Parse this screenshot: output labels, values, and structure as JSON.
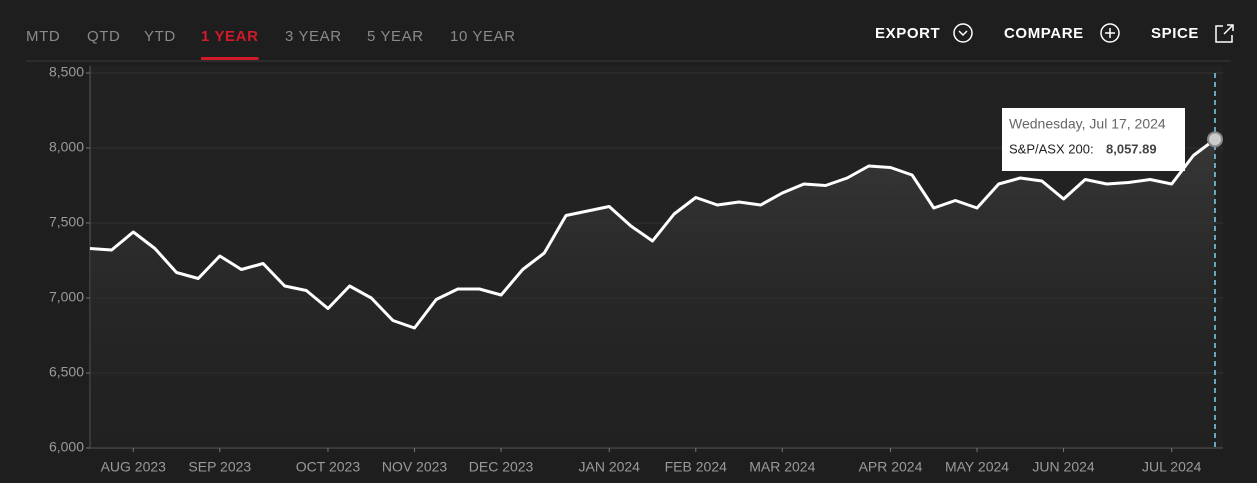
{
  "tabs": [
    "MTD",
    "QTD",
    "YTD",
    "1 YEAR",
    "3 YEAR",
    "5 YEAR",
    "10 YEAR"
  ],
  "active_tab": 3,
  "buttons": [
    "EXPORT",
    "COMPARE",
    "SPICE"
  ],
  "chart_data": {
    "type": "line",
    "categories": [
      null,
      null,
      "AUG 2023",
      null,
      null,
      null,
      "SEP 2023",
      null,
      null,
      null,
      null,
      "OCT 2023",
      null,
      null,
      null,
      "NOV 2023",
      null,
      null,
      null,
      "DEC 2023",
      null,
      null,
      null,
      null,
      "JAN 2024",
      null,
      null,
      null,
      "FEB 2024",
      null,
      null,
      null,
      "MAR 2024",
      null,
      null,
      null,
      null,
      "APR 2024",
      null,
      null,
      null,
      "MAY 2024",
      null,
      null,
      null,
      "JUN 2024",
      null,
      null,
      null,
      null,
      "JUL 2024",
      null,
      null
    ],
    "series": [
      {
        "name": "S&P/ASX 200",
        "color": "#ffffff",
        "values": [
          7330,
          7320,
          7440,
          7330,
          7170,
          7130,
          7280,
          7190,
          7230,
          7080,
          7050,
          6930,
          7080,
          7000,
          6850,
          6800,
          6990,
          7060,
          7060,
          7020,
          7190,
          7300,
          7550,
          7580,
          7610,
          7480,
          7380,
          7560,
          7670,
          7620,
          7640,
          7620,
          7700,
          7760,
          7750,
          7800,
          7880,
          7870,
          7820,
          7600,
          7650,
          7600,
          7760,
          7800,
          7780,
          7660,
          7790,
          7760,
          7770,
          7790,
          7760,
          7950,
          8057.89
        ]
      }
    ],
    "ylim": [
      6000,
      8500
    ],
    "yticks": [
      {
        "value": 6000,
        "label": "6,000"
      },
      {
        "value": 6500,
        "label": "6,500"
      },
      {
        "value": 7000,
        "label": "7,000"
      },
      {
        "value": 7500,
        "label": "7,500"
      },
      {
        "value": 8000,
        "label": "8,000"
      },
      {
        "value": 8500,
        "label": "8,500"
      }
    ],
    "grid": true,
    "tooltip": {
      "date": "Wednesday, Jul 17, 2024",
      "series_label": "S&P/ASX 200:",
      "value_label": "8,057.89"
    }
  }
}
